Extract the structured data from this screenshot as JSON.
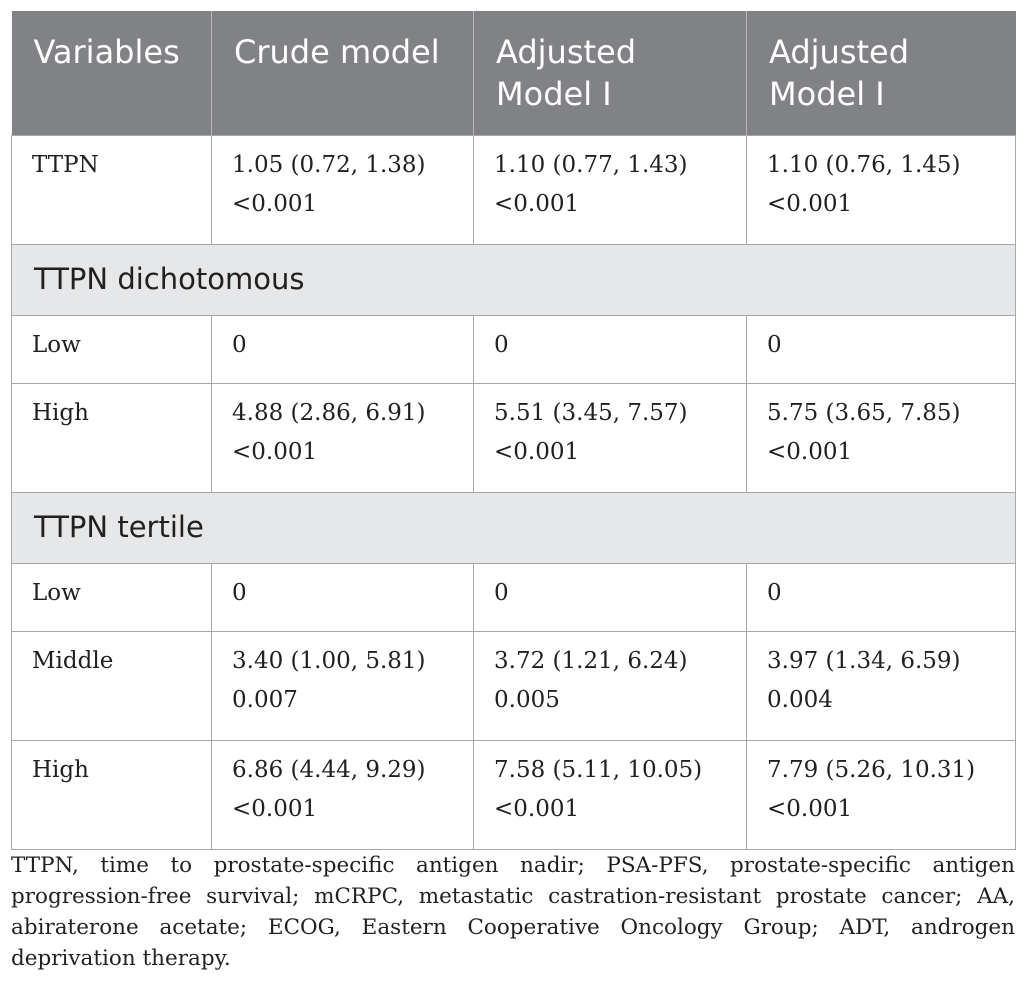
{
  "table": {
    "headers": [
      "Variables",
      "Crude model",
      "Adjusted Model I",
      "Adjusted Model I"
    ],
    "rows": {
      "ttpn": [
        "TTPN",
        "1.05 (0.72, 1.38) <0.001",
        "1.10 (0.77, 1.43) <0.001",
        "1.10 (0.76, 1.45) <0.001"
      ],
      "dichotomous_section": "TTPN dichotomous",
      "dichotomous_low": [
        "Low",
        "0",
        "0",
        "0"
      ],
      "dichotomous_high": [
        "High",
        "4.88 (2.86, 6.91) <0.001",
        "5.51 (3.45, 7.57) <0.001",
        "5.75 (3.65, 7.85) <0.001"
      ],
      "tertile_section": "TTPN tertile",
      "tertile_low": [
        "Low",
        "0",
        "0",
        "0"
      ],
      "tertile_middle": [
        "Middle",
        "3.40 (1.00, 5.81) 0.007",
        "3.72 (1.21, 6.24) 0.005",
        "3.97 (1.34, 6.59) 0.004"
      ],
      "tertile_high": [
        "High",
        "6.86 (4.44, 9.29) <0.001",
        "7.58 (5.11, 10.05) <0.001",
        "7.79 (5.26, 10.31) <0.001"
      ]
    }
  },
  "footnote": "TTPN, time to prostate-specific antigen nadir; PSA-PFS, prostate-specific antigen progression-free survival; mCRPC, metastatic castration-resistant prostate cancer; AA, abiraterone acetate; ECOG, Eastern Cooperative Oncology Group; ADT, androgen deprivation therapy."
}
